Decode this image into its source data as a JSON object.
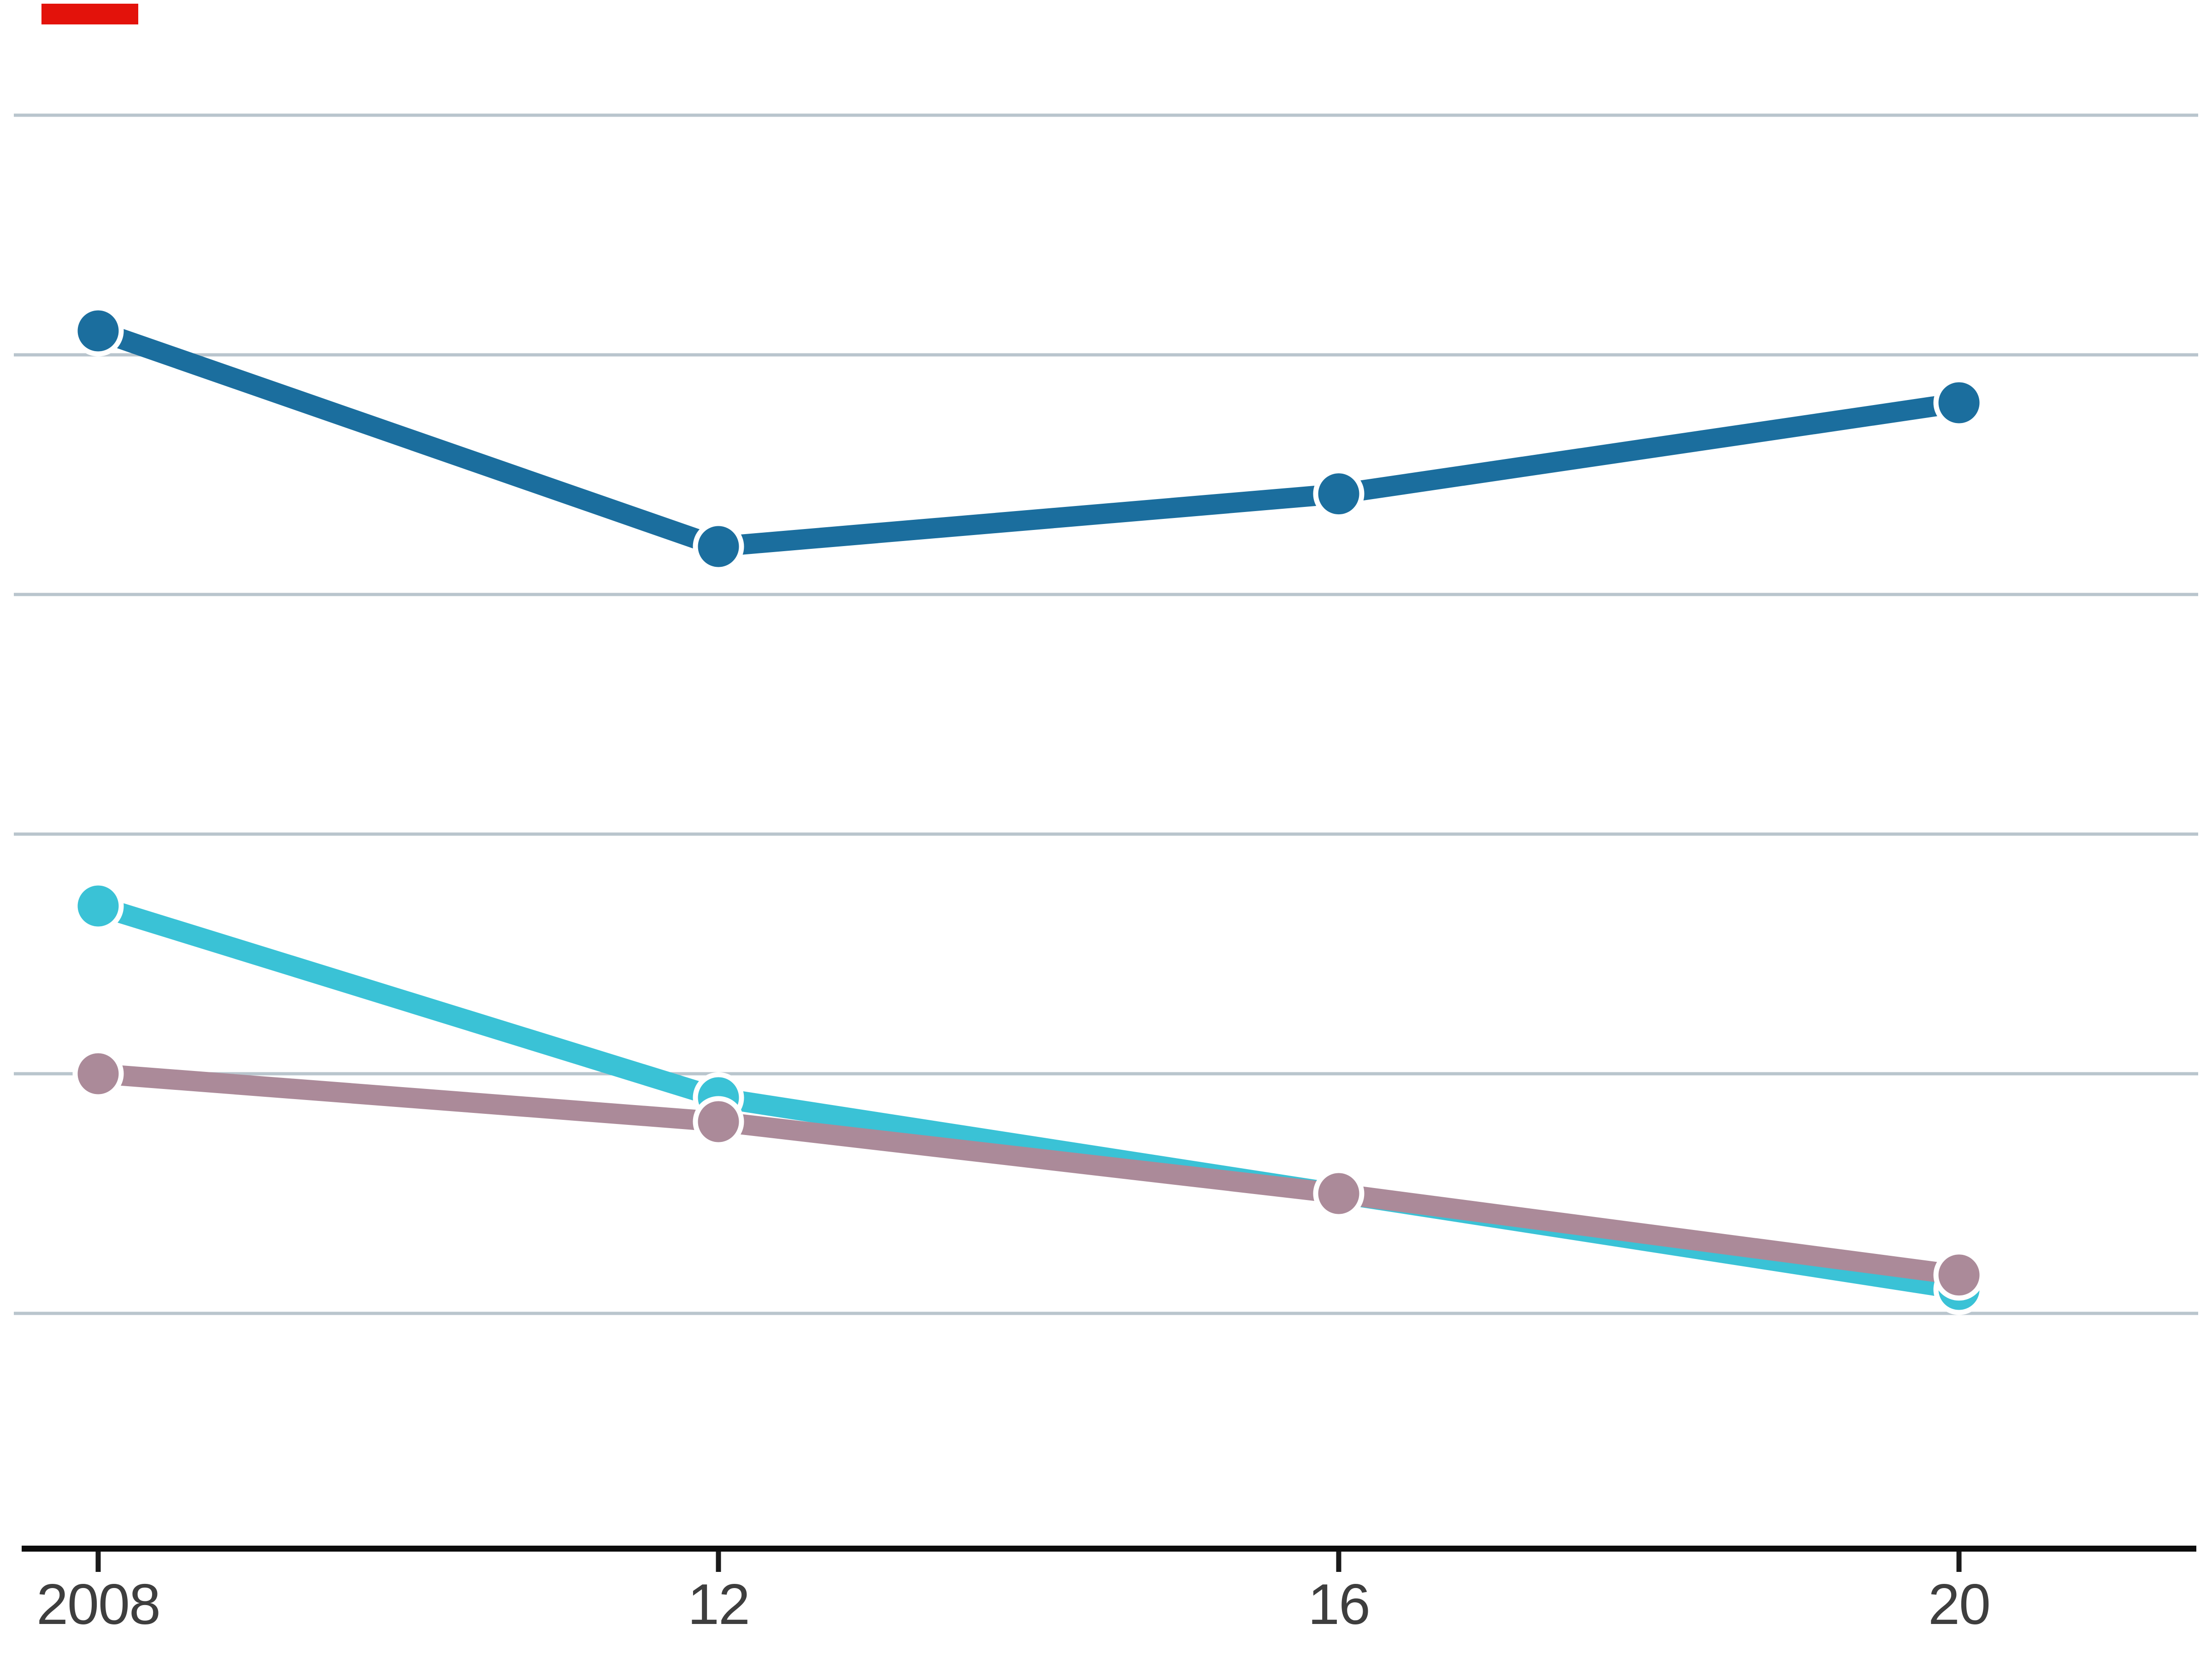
{
  "figure": {
    "background_color": "#ffffff",
    "red_tab_color": "#e3120b"
  },
  "chart_data": {
    "type": "line",
    "title": "",
    "x_tick_labels": [
      "2008",
      "12",
      "16",
      "20"
    ],
    "x_values": [
      2008,
      2012,
      2016,
      2020
    ],
    "series": [
      {
        "name": "dark-blue",
        "color": "#1b6e9e",
        "values": [
          51,
          42,
          44.2,
          48
        ]
      },
      {
        "name": "cyan",
        "color": "#3ac2d6",
        "values": [
          27,
          19,
          15,
          11
        ]
      },
      {
        "name": "mauve",
        "color": "#ab8a99",
        "values": [
          20,
          18,
          15,
          11.6
        ]
      }
    ],
    "values_note": "approximate values; y axis has no printed labels, one gridline = 10 units",
    "ylim": [
      0,
      65
    ],
    "y_gridline_interval": 10,
    "y_axis_labels_visible": false,
    "grid": "horizontal",
    "legend": "none",
    "z_order": [
      "cyan",
      "mauve",
      "dark-blue"
    ],
    "marker_style": "circle-with-white-ring",
    "colors": {
      "gridline": "#b9c5cd",
      "axis_line": "#0d0d0d",
      "tick": "#1a1a1a",
      "tick_label": "#3e3e3e",
      "marker_ring": "#ffffff"
    }
  }
}
